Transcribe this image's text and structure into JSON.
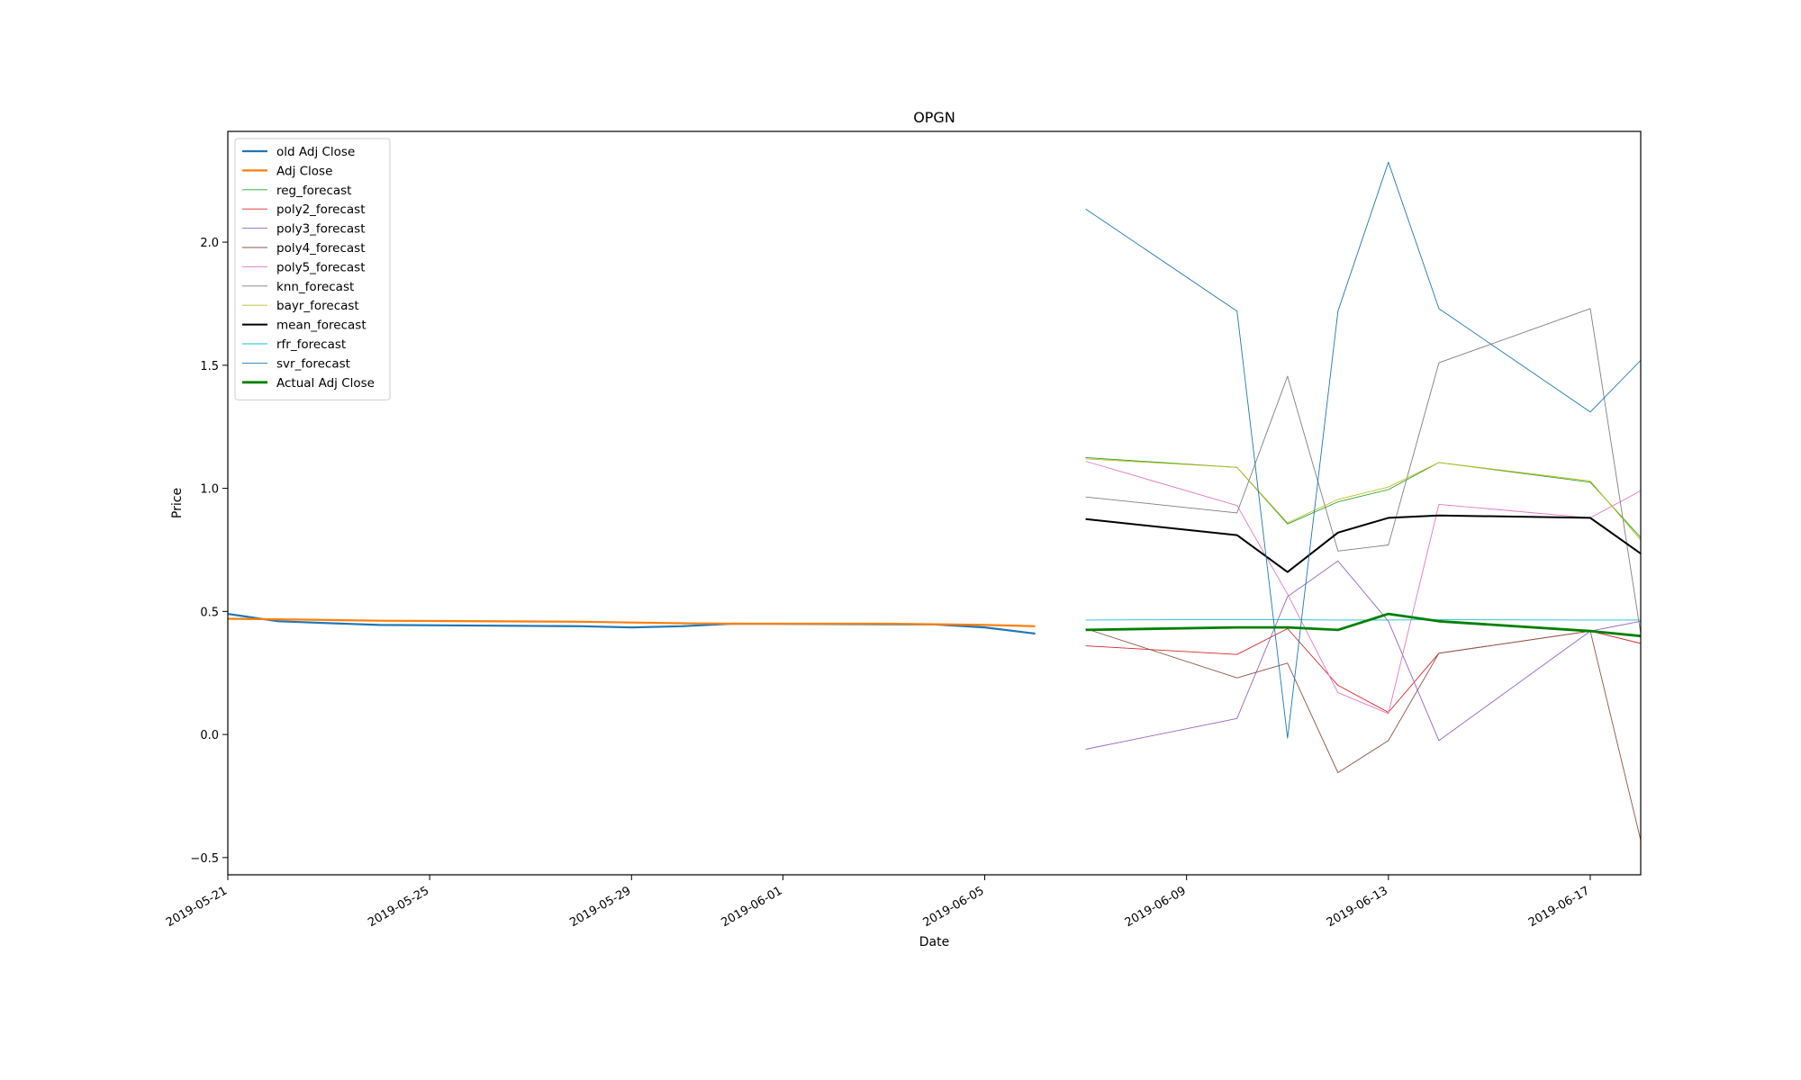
{
  "chart_data": {
    "type": "line",
    "title": "OPGN",
    "xlabel": "Date",
    "ylabel": "Price",
    "xlim": [
      "2019-05-21",
      "2019-06-18"
    ],
    "ylim": [
      -0.57,
      2.45
    ],
    "x_ticks": [
      "2019-05-21",
      "2019-05-25",
      "2019-05-29",
      "2019-06-01",
      "2019-06-05",
      "2019-06-09",
      "2019-06-13",
      "2019-06-17"
    ],
    "y_ticks": [
      -0.5,
      0.0,
      0.5,
      1.0,
      1.5,
      2.0
    ],
    "y_tick_labels": [
      "−0.5",
      "0.0",
      "0.5",
      "1.0",
      "1.5",
      "2.0"
    ],
    "grid": false,
    "legend_position": "top-left",
    "series": [
      {
        "name": "old Adj Close",
        "color": "#1f77b4",
        "width": 2.2,
        "x": [
          "2019-05-21",
          "2019-05-22",
          "2019-05-24",
          "2019-05-28",
          "2019-05-29",
          "2019-05-30",
          "2019-05-31",
          "2019-06-03",
          "2019-06-04",
          "2019-06-05",
          "2019-06-06"
        ],
        "y": [
          0.49,
          0.46,
          0.445,
          0.44,
          0.435,
          0.44,
          0.45,
          0.448,
          0.447,
          0.435,
          0.41
        ]
      },
      {
        "name": "Adj Close",
        "color": "#ff7f0e",
        "width": 2.2,
        "x": [
          "2019-05-21",
          "2019-05-22",
          "2019-05-23",
          "2019-05-24",
          "2019-05-28",
          "2019-05-29",
          "2019-05-30",
          "2019-05-31",
          "2019-06-03",
          "2019-06-04",
          "2019-06-05",
          "2019-06-06"
        ],
        "y": [
          0.47,
          0.468,
          0.465,
          0.462,
          0.458,
          0.455,
          0.452,
          0.45,
          0.45,
          0.448,
          0.445,
          0.44
        ]
      },
      {
        "name": "reg_forecast",
        "color": "#2ca02c",
        "width": 0.9,
        "x": [
          "2019-06-07",
          "2019-06-10",
          "2019-06-11",
          "2019-06-12",
          "2019-06-13",
          "2019-06-14",
          "2019-06-17",
          "2019-06-18"
        ],
        "y": [
          1.125,
          1.085,
          0.855,
          0.945,
          0.995,
          1.105,
          1.025,
          0.8
        ]
      },
      {
        "name": "poly2_forecast",
        "color": "#d62728",
        "width": 0.9,
        "x": [
          "2019-06-07",
          "2019-06-10",
          "2019-06-11",
          "2019-06-12",
          "2019-06-13",
          "2019-06-14",
          "2019-06-17",
          "2019-06-18"
        ],
        "y": [
          0.36,
          0.325,
          0.43,
          0.2,
          0.09,
          0.33,
          0.42,
          0.37
        ]
      },
      {
        "name": "poly3_forecast",
        "color": "#9467bd",
        "width": 0.9,
        "x": [
          "2019-06-07",
          "2019-06-10",
          "2019-06-11",
          "2019-06-12",
          "2019-06-13",
          "2019-06-14",
          "2019-06-17",
          "2019-06-18"
        ],
        "y": [
          -0.06,
          0.065,
          0.56,
          0.705,
          0.46,
          -0.025,
          0.42,
          0.46
        ]
      },
      {
        "name": "poly4_forecast",
        "color": "#8c564b",
        "width": 0.9,
        "x": [
          "2019-06-07",
          "2019-06-10",
          "2019-06-11",
          "2019-06-12",
          "2019-06-13",
          "2019-06-14",
          "2019-06-17",
          "2019-06-18"
        ],
        "y": [
          0.43,
          0.23,
          0.29,
          -0.155,
          -0.025,
          0.33,
          0.42,
          -0.43
        ]
      },
      {
        "name": "poly5_forecast",
        "color": "#e377c2",
        "width": 0.9,
        "x": [
          "2019-06-07",
          "2019-06-10",
          "2019-06-11",
          "2019-06-12",
          "2019-06-13",
          "2019-06-14",
          "2019-06-17",
          "2019-06-18"
        ],
        "y": [
          1.11,
          0.93,
          0.57,
          0.17,
          0.085,
          0.935,
          0.88,
          0.99
        ]
      },
      {
        "name": "knn_forecast",
        "color": "#7f7f7f",
        "width": 0.9,
        "x": [
          "2019-06-07",
          "2019-06-10",
          "2019-06-11",
          "2019-06-12",
          "2019-06-13",
          "2019-06-14",
          "2019-06-17",
          "2019-06-18"
        ],
        "y": [
          0.965,
          0.9,
          1.455,
          0.745,
          0.77,
          1.51,
          1.73,
          0.41
        ]
      },
      {
        "name": "bayr_forecast",
        "color": "#bcbd22",
        "width": 0.9,
        "x": [
          "2019-06-07",
          "2019-06-10",
          "2019-06-11",
          "2019-06-12",
          "2019-06-13",
          "2019-06-14",
          "2019-06-17",
          "2019-06-18"
        ],
        "y": [
          1.12,
          1.085,
          0.86,
          0.955,
          1.005,
          1.105,
          1.03,
          0.79
        ]
      },
      {
        "name": "mean_forecast",
        "color": "#000000",
        "width": 2.0,
        "x": [
          "2019-06-07",
          "2019-06-10",
          "2019-06-11",
          "2019-06-12",
          "2019-06-13",
          "2019-06-14",
          "2019-06-17",
          "2019-06-18"
        ],
        "y": [
          0.875,
          0.81,
          0.66,
          0.82,
          0.88,
          0.89,
          0.88,
          0.735
        ]
      },
      {
        "name": "rfr_forecast",
        "color": "#17becf",
        "width": 0.9,
        "x": [
          "2019-06-07",
          "2019-06-10",
          "2019-06-11",
          "2019-06-12",
          "2019-06-13",
          "2019-06-14",
          "2019-06-17",
          "2019-06-18"
        ],
        "y": [
          0.465,
          0.467,
          0.466,
          0.465,
          0.465,
          0.466,
          0.465,
          0.465
        ]
      },
      {
        "name": "svr_forecast",
        "color": "#1f77b4",
        "width": 0.9,
        "x": [
          "2019-06-07",
          "2019-06-10",
          "2019-06-11",
          "2019-06-12",
          "2019-06-13",
          "2019-06-14",
          "2019-06-17",
          "2019-06-18"
        ],
        "y": [
          2.135,
          1.72,
          -0.015,
          1.72,
          2.325,
          1.73,
          1.31,
          1.52
        ]
      },
      {
        "name": "Actual Adj Close",
        "color": "#008000",
        "width": 2.8,
        "x": [
          "2019-06-07",
          "2019-06-10",
          "2019-06-11",
          "2019-06-12",
          "2019-06-13",
          "2019-06-14",
          "2019-06-17",
          "2019-06-18"
        ],
        "y": [
          0.425,
          0.435,
          0.435,
          0.425,
          0.49,
          0.46,
          0.42,
          0.4
        ]
      }
    ]
  }
}
